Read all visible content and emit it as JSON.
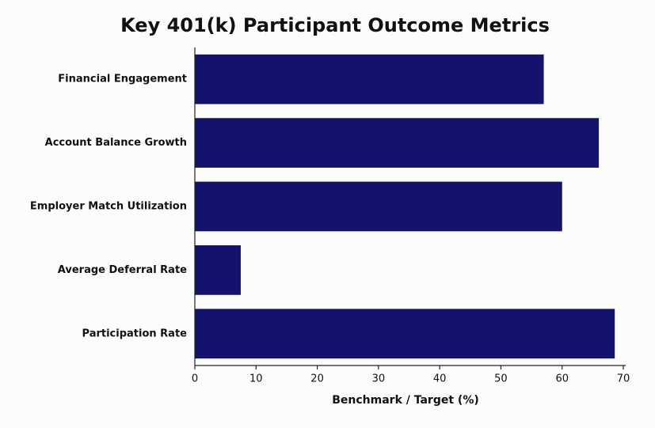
{
  "chart_data": {
    "type": "barh",
    "title": "Key 401(k) Participant Outcome Metrics",
    "xlabel": "Benchmark / Target (%)",
    "categories": [
      "Financial Engagement",
      "Account Balance Growth",
      "Employer Match Utilization",
      "Average Deferral Rate",
      "Participation Rate"
    ],
    "values": [
      57,
      66,
      60,
      7.5,
      68.6
    ],
    "color": "#13136e",
    "xlim": [
      0,
      70
    ],
    "xticks": [
      0,
      10,
      20,
      30,
      40,
      50,
      60,
      70
    ],
    "grid": false
  }
}
